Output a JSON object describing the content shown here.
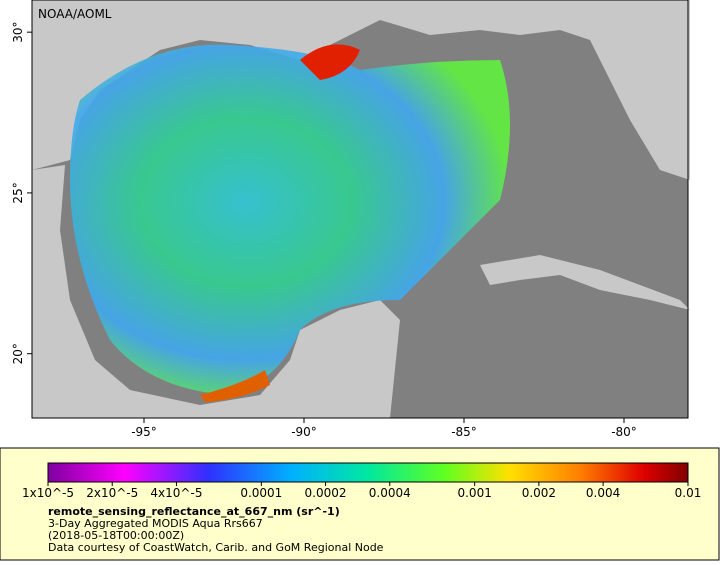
{
  "map": {
    "credit": "NOAA/AOML",
    "xlim": [
      -98.5,
      -78
    ],
    "ylim": [
      18,
      31
    ],
    "xticks": [
      {
        "value": -95,
        "label": "-95°"
      },
      {
        "value": -90,
        "label": "-90°"
      },
      {
        "value": -85,
        "label": "-85°"
      },
      {
        "value": -80,
        "label": "-80°"
      }
    ],
    "yticks": [
      {
        "value": 20,
        "label": "20°"
      },
      {
        "value": 25,
        "label": "25°"
      },
      {
        "value": 30,
        "label": "30°"
      }
    ]
  },
  "colorbar": {
    "scale": "log",
    "range": [
      1e-05,
      0.01
    ],
    "ticks": [
      {
        "value": 1e-05,
        "label": "1x10^-5"
      },
      {
        "value": 2e-05,
        "label": "2x10^-5"
      },
      {
        "value": 4e-05,
        "label": "4x10^-5"
      },
      0.0001,
      0.0002,
      0.0004,
      0.001,
      0.002,
      0.004,
      0.01
    ]
  },
  "caption": {
    "variable": "remote_sensing_reflectance_at_667_nm (sr^-1)",
    "description": "3-Day Aggregated MODIS Aqua Rrs667",
    "time": "(2018-05-18T00:00:00Z)",
    "source": "Data courtesy of CoastWatch, Carib. and GoM Regional Node"
  }
}
